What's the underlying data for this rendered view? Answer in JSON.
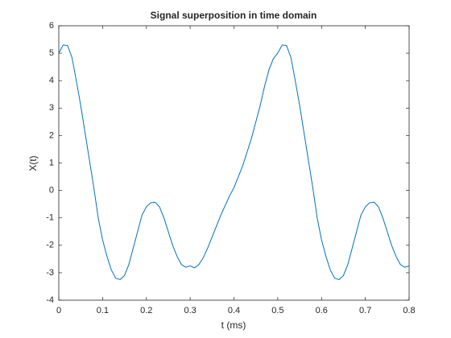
{
  "chart_data": {
    "type": "line",
    "title": "Signal superposition in time domain",
    "x_label": "t (ms)",
    "y_label": "X(t)",
    "x": [
      0,
      0.01,
      0.02,
      0.03,
      0.04,
      0.05,
      0.06,
      0.07,
      0.08,
      0.09,
      0.1,
      0.11,
      0.12,
      0.13,
      0.14,
      0.15,
      0.16,
      0.17,
      0.18,
      0.19,
      0.2,
      0.21,
      0.22,
      0.23,
      0.24,
      0.25,
      0.26,
      0.27,
      0.28,
      0.29,
      0.3,
      0.31,
      0.32,
      0.33,
      0.34,
      0.35,
      0.36,
      0.37,
      0.38,
      0.39,
      0.4,
      0.41,
      0.42,
      0.43,
      0.44,
      0.45,
      0.46,
      0.47,
      0.48,
      0.49,
      0.5,
      0.51,
      0.52,
      0.53,
      0.54,
      0.55,
      0.56,
      0.57,
      0.58,
      0.59,
      0.6,
      0.61,
      0.62,
      0.63,
      0.64,
      0.65,
      0.66,
      0.67,
      0.68,
      0.69,
      0.7,
      0.71,
      0.72,
      0.73,
      0.74,
      0.75,
      0.76,
      0.77,
      0.78,
      0.79,
      0.8
    ],
    "series": [
      {
        "color": "#0072bd",
        "values": [
          5.0,
          5.3,
          5.28,
          4.85,
          4.0,
          3.1,
          2.1,
          1.1,
          0.1,
          -1.0,
          -1.8,
          -2.4,
          -2.9,
          -3.2,
          -3.25,
          -3.1,
          -2.7,
          -2.1,
          -1.5,
          -0.9,
          -0.6,
          -0.45,
          -0.43,
          -0.6,
          -1.0,
          -1.5,
          -2.0,
          -2.4,
          -2.7,
          -2.8,
          -2.75,
          -2.82,
          -2.7,
          -2.45,
          -2.1,
          -1.7,
          -1.3,
          -0.9,
          -0.55,
          -0.2,
          0.1,
          0.5,
          0.9,
          1.4,
          1.9,
          2.5,
          3.1,
          3.8,
          4.4,
          4.8,
          5.0,
          5.3,
          5.28,
          4.85,
          4.0,
          3.1,
          2.1,
          1.1,
          0.1,
          -1.0,
          -1.8,
          -2.4,
          -2.9,
          -3.2,
          -3.25,
          -3.1,
          -2.7,
          -2.1,
          -1.5,
          -0.9,
          -0.6,
          -0.45,
          -0.43,
          -0.6,
          -1.0,
          -1.5,
          -2.0,
          -2.4,
          -2.7,
          -2.8,
          -2.75
        ]
      }
    ],
    "xlim": [
      0,
      0.8
    ],
    "xticks": [
      0,
      0.1,
      0.2,
      0.3,
      0.4,
      0.5,
      0.6,
      0.7,
      0.8
    ],
    "ylim": [
      -4,
      6
    ],
    "yticks": [
      -4,
      -3,
      -2,
      -1,
      0,
      1,
      2,
      3,
      4,
      5,
      6
    ],
    "grid": false
  }
}
